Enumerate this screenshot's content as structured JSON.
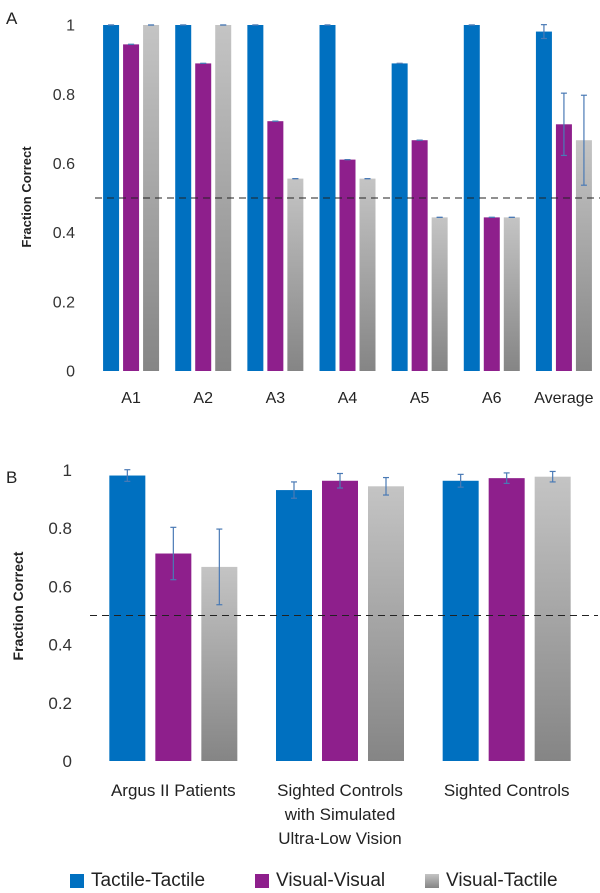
{
  "chart_data": [
    {
      "panel_label": "A",
      "type": "bar",
      "ylabel": "Fraction Correct",
      "ylim": [
        0,
        1
      ],
      "yticks": [
        "0",
        "0.2",
        "0.4",
        "0.6",
        "0.8",
        "1"
      ],
      "ytick_values": [
        0,
        0.2,
        0.4,
        0.6,
        0.8,
        1
      ],
      "reference_line": 0.5,
      "categories": [
        "A1",
        "A2",
        "A3",
        "A4",
        "A5",
        "A6",
        "Average"
      ],
      "series": [
        {
          "name": "Tactile-Tactile",
          "color": "#0070c0",
          "values": [
            1,
            1,
            1,
            1,
            0.889,
            1,
            0.981
          ],
          "errors": [
            0,
            0,
            0,
            0,
            0,
            0,
            0.02
          ]
        },
        {
          "name": "Visual-Visual",
          "color": "#8e1f8c",
          "values": [
            0.944,
            0.889,
            0.722,
            0.611,
            0.667,
            0.444,
            0.713
          ],
          "errors": [
            0,
            0,
            0,
            0,
            0,
            0,
            0.09
          ]
        },
        {
          "name": "Visual-Tactile",
          "color": "#a6a6a6",
          "values": [
            1,
            1,
            0.556,
            0.556,
            0.444,
            0.444,
            0.667
          ],
          "errors": [
            0,
            0,
            0,
            0,
            0,
            0,
            0.13
          ]
        }
      ]
    },
    {
      "panel_label": "B",
      "type": "bar",
      "ylabel": "Fraction Correct",
      "ylim": [
        0,
        1
      ],
      "yticks": [
        "0",
        "0.2",
        "0.4",
        "0.6",
        "0.8",
        "1"
      ],
      "ytick_values": [
        0,
        0.2,
        0.4,
        0.6,
        0.8,
        1
      ],
      "reference_line": 0.5,
      "categories": [
        [
          "Argus II Patients"
        ],
        [
          "Sighted Controls",
          "with Simulated",
          "Ultra-Low Vision"
        ],
        [
          "Sighted Controls"
        ]
      ],
      "series": [
        {
          "name": "Tactile-Tactile",
          "color": "#0070c0",
          "values": [
            0.981,
            0.931,
            0.963
          ],
          "errors": [
            0.02,
            0.028,
            0.022
          ]
        },
        {
          "name": "Visual-Visual",
          "color": "#8e1f8c",
          "values": [
            0.713,
            0.963,
            0.972
          ],
          "errors": [
            0.09,
            0.025,
            0.018
          ]
        },
        {
          "name": "Visual-Tactile",
          "color": "#a6a6a6",
          "values": [
            0.667,
            0.944,
            0.977
          ],
          "errors": [
            0.13,
            0.03,
            0.018
          ]
        }
      ]
    }
  ],
  "legend": [
    {
      "label": "Tactile-Tactile",
      "color": "#0070c0"
    },
    {
      "label": "Visual-Visual",
      "color": "#8e1f8c"
    },
    {
      "label": "Visual-Tactile",
      "color": "#a6a6a6"
    }
  ]
}
